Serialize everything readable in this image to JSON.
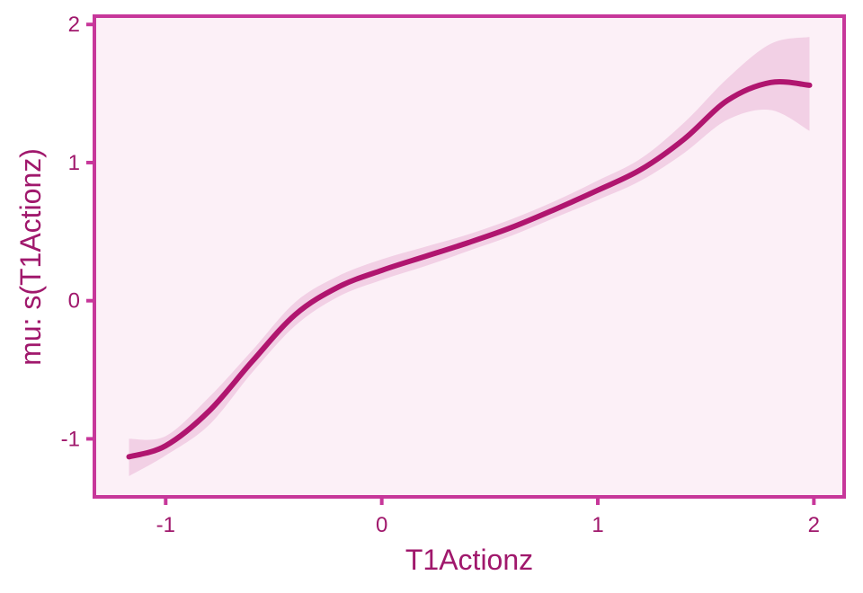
{
  "chart_data": {
    "type": "line",
    "title": "",
    "xlabel": "T1Actionz",
    "ylabel": "mu: s(T1Actionz)",
    "xlim": [
      -1.33,
      2.14
    ],
    "ylim": [
      -1.42,
      2.06
    ],
    "x_ticks": [
      {
        "value": -1,
        "label": "-1"
      },
      {
        "value": 0,
        "label": "0"
      },
      {
        "value": 1,
        "label": "1"
      },
      {
        "value": 2,
        "label": "2"
      }
    ],
    "y_ticks": [
      {
        "value": -1,
        "label": "-1"
      },
      {
        "value": 0,
        "label": "0"
      },
      {
        "value": 1,
        "label": "1"
      },
      {
        "value": 2,
        "label": "2"
      }
    ],
    "grid": false,
    "series": [
      {
        "x": [
          -1.17,
          -1.0,
          -0.8,
          -0.6,
          -0.4,
          -0.2,
          0.0,
          0.2,
          0.4,
          0.6,
          0.8,
          1.0,
          1.2,
          1.4,
          1.6,
          1.8,
          1.98
        ],
        "y": [
          -1.13,
          -1.05,
          -0.8,
          -0.44,
          -0.1,
          0.1,
          0.22,
          0.32,
          0.42,
          0.53,
          0.66,
          0.8,
          0.95,
          1.17,
          1.45,
          1.58,
          1.56
        ],
        "lower": [
          -1.27,
          -1.12,
          -0.9,
          -0.52,
          -0.18,
          0.03,
          0.15,
          0.25,
          0.36,
          0.47,
          0.6,
          0.73,
          0.87,
          1.07,
          1.31,
          1.38,
          1.23
        ],
        "upper": [
          -1.0,
          -0.98,
          -0.7,
          -0.36,
          -0.01,
          0.18,
          0.3,
          0.39,
          0.48,
          0.59,
          0.72,
          0.87,
          1.03,
          1.29,
          1.61,
          1.86,
          1.91
        ]
      }
    ]
  },
  "colors": {
    "line": "#b0156f",
    "ribbon": "#f2d0e5",
    "panel": "#fcf0f7",
    "frame": "#c7379a",
    "text": "#a0186c"
  }
}
